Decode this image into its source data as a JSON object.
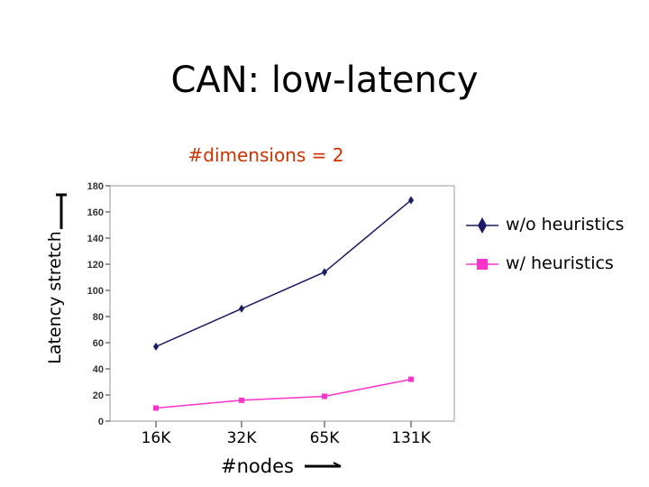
{
  "slide": {
    "title": "CAN: low-latency",
    "subtitle": "#dimensions = 2",
    "subtitle_color": "#cc3300"
  },
  "chart_data": {
    "type": "line",
    "ylabel": "Latency stretch",
    "xlabel": "#nodes",
    "categories": [
      "16K",
      "32K",
      "65K",
      "131K"
    ],
    "ylim": [
      0,
      180
    ],
    "yticks": [
      0,
      20,
      40,
      60,
      80,
      100,
      120,
      140,
      160,
      180
    ],
    "legend_position": "right",
    "grid": false,
    "series": [
      {
        "name": "w/o heuristics",
        "values": [
          57,
          86,
          114,
          169
        ],
        "color": "#1a1a66",
        "marker": "diamond"
      },
      {
        "name": "w/ heuristics",
        "values": [
          10,
          16,
          19,
          32
        ],
        "color": "#ff33cc",
        "marker": "square"
      }
    ]
  }
}
